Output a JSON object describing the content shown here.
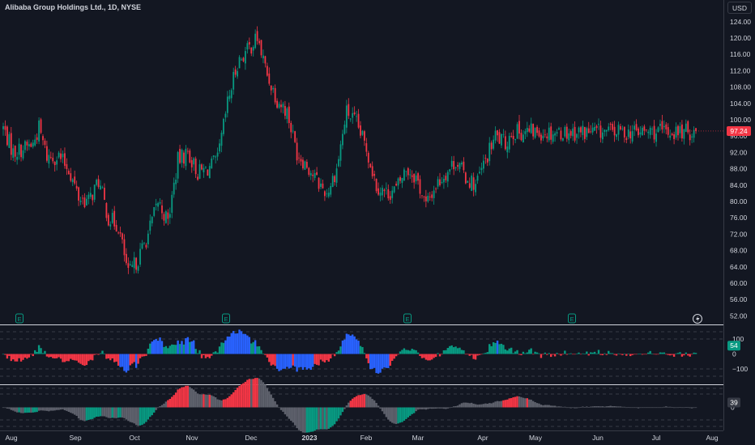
{
  "header": {
    "title": "Alibaba Group Holdings Ltd., 1D, NYSE",
    "currency_button": "USD"
  },
  "colors": {
    "background": "#131722",
    "up": "#089981",
    "down": "#f23645",
    "blue": "#2962ff",
    "gray": "#5d606b",
    "axis_text": "#d1d4dc"
  },
  "price_axis": {
    "ticks": [
      "124.00",
      "120.00",
      "116.00",
      "112.00",
      "108.00",
      "104.00",
      "100.00",
      "96.00",
      "92.00",
      "88.00",
      "84.00",
      "80.00",
      "76.00",
      "72.00",
      "68.00",
      "64.00",
      "60.00",
      "56.00",
      "52.00"
    ]
  },
  "last_price": {
    "label": "97.24",
    "value": 97.24
  },
  "earnings_markers": {
    "icon": "earnings-icon",
    "label": "E",
    "count": 4
  },
  "flash_icon": "lightning-icon",
  "time_axis": {
    "labels": [
      "Aug",
      "Sep",
      "Oct",
      "Nov",
      "Dec",
      "2023",
      "Feb",
      "Mar",
      "Apr",
      "May",
      "Jun",
      "Jul",
      "Aug"
    ]
  },
  "oscillator1": {
    "ticks": [
      "100",
      "0",
      "−100"
    ],
    "value_label": "54",
    "value": 54
  },
  "oscillator2": {
    "ticks": [
      "0"
    ],
    "value_label": "39",
    "value": 39
  },
  "chart_data": {
    "type": "candlestick",
    "title": "Alibaba Group Holdings Ltd., 1D, NYSE",
    "x_range": [
      "Aug 2022",
      "Aug 2023"
    ],
    "ylim": [
      50,
      126
    ],
    "y_unit": "USD",
    "path_points": [
      {
        "date": "2022-08-01",
        "price": 98
      },
      {
        "date": "2022-08-08",
        "price": 92
      },
      {
        "date": "2022-08-15",
        "price": 93
      },
      {
        "date": "2022-08-22",
        "price": 94
      },
      {
        "date": "2022-08-26",
        "price": 98
      },
      {
        "date": "2022-09-01",
        "price": 91
      },
      {
        "date": "2022-09-09",
        "price": 91
      },
      {
        "date": "2022-09-16",
        "price": 88
      },
      {
        "date": "2022-09-23",
        "price": 81
      },
      {
        "date": "2022-09-30",
        "price": 80
      },
      {
        "date": "2022-10-07",
        "price": 85
      },
      {
        "date": "2022-10-14",
        "price": 76
      },
      {
        "date": "2022-10-21",
        "price": 74
      },
      {
        "date": "2022-10-28",
        "price": 62
      },
      {
        "date": "2022-11-04",
        "price": 66
      },
      {
        "date": "2022-11-11",
        "price": 72
      },
      {
        "date": "2022-11-18",
        "price": 80
      },
      {
        "date": "2022-11-25",
        "price": 75
      },
      {
        "date": "2022-12-02",
        "price": 90
      },
      {
        "date": "2022-12-09",
        "price": 92
      },
      {
        "date": "2022-12-16",
        "price": 87
      },
      {
        "date": "2022-12-23",
        "price": 88
      },
      {
        "date": "2022-12-30",
        "price": 90
      },
      {
        "date": "2023-01-06",
        "price": 104
      },
      {
        "date": "2023-01-13",
        "price": 114
      },
      {
        "date": "2023-01-20",
        "price": 117
      },
      {
        "date": "2023-01-27",
        "price": 120
      },
      {
        "date": "2023-02-03",
        "price": 111
      },
      {
        "date": "2023-02-10",
        "price": 105
      },
      {
        "date": "2023-02-17",
        "price": 102
      },
      {
        "date": "2023-02-24",
        "price": 92
      },
      {
        "date": "2023-03-03",
        "price": 89
      },
      {
        "date": "2023-03-10",
        "price": 85
      },
      {
        "date": "2023-03-17",
        "price": 82
      },
      {
        "date": "2023-03-24",
        "price": 88
      },
      {
        "date": "2023-03-31",
        "price": 102
      },
      {
        "date": "2023-04-07",
        "price": 99
      },
      {
        "date": "2023-04-14",
        "price": 93
      },
      {
        "date": "2023-04-21",
        "price": 84
      },
      {
        "date": "2023-04-28",
        "price": 82
      },
      {
        "date": "2023-05-05",
        "price": 83
      },
      {
        "date": "2023-05-12",
        "price": 88
      },
      {
        "date": "2023-05-19",
        "price": 86
      },
      {
        "date": "2023-05-26",
        "price": 79
      },
      {
        "date": "2023-06-02",
        "price": 84
      },
      {
        "date": "2023-06-09",
        "price": 87
      },
      {
        "date": "2023-06-16",
        "price": 90
      },
      {
        "date": "2023-06-23",
        "price": 86
      },
      {
        "date": "2023-06-30",
        "price": 84
      },
      {
        "date": "2023-07-07",
        "price": 90
      },
      {
        "date": "2023-07-14",
        "price": 96
      },
      {
        "date": "2023-07-21",
        "price": 94
      },
      {
        "date": "2023-07-26",
        "price": 97
      }
    ],
    "last_value": 97.24,
    "indicator_panels": [
      {
        "name": "",
        "ticks": [
          100,
          0,
          -100
        ],
        "last_value": 54
      },
      {
        "name": "",
        "ticks": [
          0
        ],
        "last_value": 39
      }
    ]
  }
}
